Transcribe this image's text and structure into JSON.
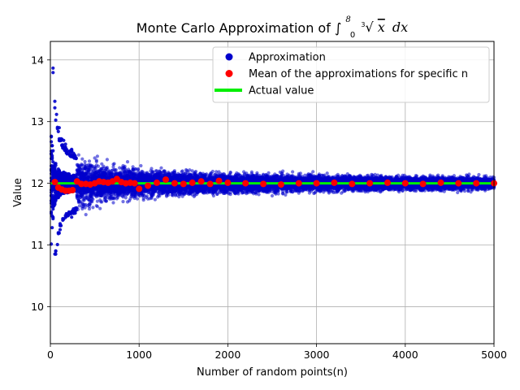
{
  "chart_data": {
    "type": "scatter",
    "title": "Monte Carlo Approximation of ∫",
    "title_math": {
      "upper_limit": "8",
      "lower_limit": "0",
      "root_index": "3",
      "radicand": "x",
      "differential": "dx"
    },
    "xlabel": "Number of random points(n)",
    "ylabel": "Value",
    "xlim": [
      0,
      5000
    ],
    "ylim": [
      9.4,
      14.3
    ],
    "xticks": [
      0,
      1000,
      2000,
      3000,
      4000,
      5000
    ],
    "xtick_labels": [
      "0",
      "1000",
      "2000",
      "3000",
      "4000",
      "5000"
    ],
    "yticks": [
      10,
      11,
      12,
      13,
      14
    ],
    "ytick_labels": [
      "10",
      "11",
      "12",
      "13",
      "14"
    ],
    "grid": true,
    "legend_position": "top-right",
    "colors": {
      "approximation": "#0000cc",
      "mean": "#ff0000",
      "actual": "#00ee00"
    },
    "actual_value": 12,
    "approximation_n_range": [
      10,
      5000
    ],
    "approximation_step": 10,
    "approximations_per_n": 25,
    "mean_points": [
      {
        "x": 50,
        "y": 12.02
      },
      {
        "x": 90,
        "y": 11.93
      },
      {
        "x": 130,
        "y": 11.9
      },
      {
        "x": 170,
        "y": 11.88
      },
      {
        "x": 210,
        "y": 11.88
      },
      {
        "x": 250,
        "y": 11.89
      },
      {
        "x": 300,
        "y": 12.03
      },
      {
        "x": 350,
        "y": 11.99
      },
      {
        "x": 400,
        "y": 11.99
      },
      {
        "x": 450,
        "y": 11.98
      },
      {
        "x": 500,
        "y": 12.0
      },
      {
        "x": 550,
        "y": 12.03
      },
      {
        "x": 600,
        "y": 12.02
      },
      {
        "x": 650,
        "y": 12.01
      },
      {
        "x": 700,
        "y": 12.03
      },
      {
        "x": 750,
        "y": 12.07
      },
      {
        "x": 800,
        "y": 12.02
      },
      {
        "x": 850,
        "y": 12.0
      },
      {
        "x": 900,
        "y": 12.01
      },
      {
        "x": 950,
        "y": 12.0
      },
      {
        "x": 1000,
        "y": 11.91
      },
      {
        "x": 1100,
        "y": 11.96
      },
      {
        "x": 1200,
        "y": 12.01
      },
      {
        "x": 1300,
        "y": 12.06
      },
      {
        "x": 1400,
        "y": 12.0
      },
      {
        "x": 1500,
        "y": 11.99
      },
      {
        "x": 1600,
        "y": 12.01
      },
      {
        "x": 1700,
        "y": 12.03
      },
      {
        "x": 1800,
        "y": 11.99
      },
      {
        "x": 1900,
        "y": 12.04
      },
      {
        "x": 2000,
        "y": 12.01
      },
      {
        "x": 2200,
        "y": 12.0
      },
      {
        "x": 2400,
        "y": 11.99
      },
      {
        "x": 2600,
        "y": 11.98
      },
      {
        "x": 2800,
        "y": 12.0
      },
      {
        "x": 3000,
        "y": 12.0
      },
      {
        "x": 3200,
        "y": 12.01
      },
      {
        "x": 3400,
        "y": 11.99
      },
      {
        "x": 3600,
        "y": 12.0
      },
      {
        "x": 3800,
        "y": 12.01
      },
      {
        "x": 4000,
        "y": 12.0
      },
      {
        "x": 4200,
        "y": 11.99
      },
      {
        "x": 4400,
        "y": 12.01
      },
      {
        "x": 4600,
        "y": 12.0
      },
      {
        "x": 4800,
        "y": 12.0
      },
      {
        "x": 5000,
        "y": 12.0
      }
    ],
    "legend": [
      {
        "label": "Approximation",
        "kind": "dot",
        "color_key": "approximation"
      },
      {
        "label": "Mean of the approximations for specific n",
        "kind": "dot",
        "color_key": "mean"
      },
      {
        "label": "Actual value",
        "kind": "line",
        "color_key": "actual"
      }
    ]
  }
}
